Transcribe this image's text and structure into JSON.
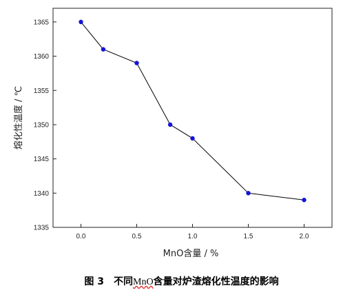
{
  "chart_data": {
    "type": "line",
    "x": [
      0.0,
      0.2,
      0.5,
      0.8,
      1.0,
      1.5,
      2.0
    ],
    "series": [
      {
        "values": [
          1365,
          1361,
          1359,
          1350,
          1348,
          1340,
          1339
        ]
      }
    ],
    "xlabel": "MnO含量 / %",
    "ylabel": "熔化性温度 / ℃",
    "xlim": [
      -0.25,
      2.25
    ],
    "ylim": [
      1335,
      1367
    ],
    "xticks": [
      0.0,
      0.5,
      1.0,
      1.5,
      2.0
    ],
    "xtick_labels": [
      "0.0",
      "0.5",
      "1.0",
      "1.5",
      "2.0"
    ],
    "yticks": [
      1335,
      1340,
      1345,
      1350,
      1355,
      1360,
      1365
    ],
    "ytick_labels": [
      "1335",
      "1340",
      "1345",
      "1350",
      "1355",
      "1360",
      "1365"
    ],
    "grid": false,
    "line_color": "#000000",
    "marker_color": "#1414d8"
  },
  "caption": {
    "figure_number": "图 3",
    "prefix": "不同",
    "highlight": "MnO",
    "suffix": "含量对炉渣熔化性温度的影响"
  }
}
